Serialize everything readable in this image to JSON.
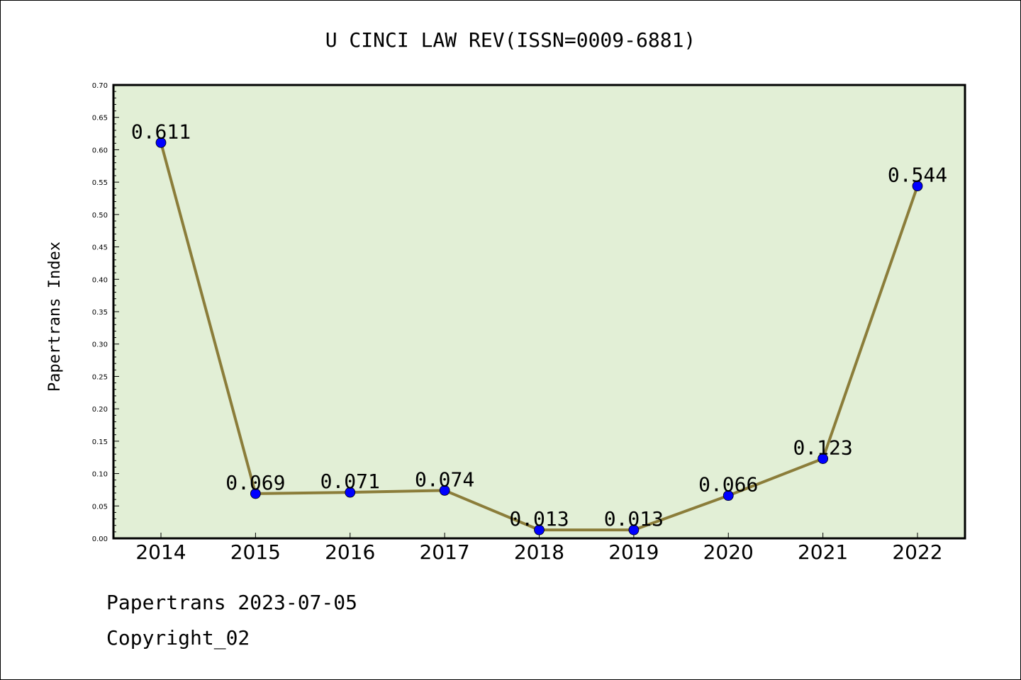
{
  "chart_data": {
    "type": "line",
    "title": "U CINCI LAW REV(ISSN=0009-6881)",
    "ylabel": "Papertrans Index",
    "xlabel": "",
    "categories": [
      "2014",
      "2015",
      "2016",
      "2017",
      "2018",
      "2019",
      "2020",
      "2021",
      "2022"
    ],
    "values": [
      0.611,
      0.069,
      0.071,
      0.074,
      0.013,
      0.013,
      0.066,
      0.123,
      0.544
    ],
    "data_labels": [
      "0.611",
      "0.069",
      "0.071",
      "0.074",
      "0.013",
      "0.013",
      "0.066",
      "0.123",
      "0.544"
    ],
    "ylim": [
      0,
      0.7
    ],
    "yticks": [
      "0.00",
      "0.05",
      "0.10",
      "0.15",
      "0.20",
      "0.25",
      "0.30",
      "0.35",
      "0.40",
      "0.45",
      "0.50",
      "0.55",
      "0.60",
      "0.65",
      "0.70"
    ],
    "grid": false,
    "colors": {
      "line": "#8b7d3a",
      "marker": "#0000ff",
      "plot_bg": "#e2efd6"
    }
  },
  "footer": {
    "line1": "Papertrans 2023-07-05",
    "line2": "Copyright_02"
  }
}
